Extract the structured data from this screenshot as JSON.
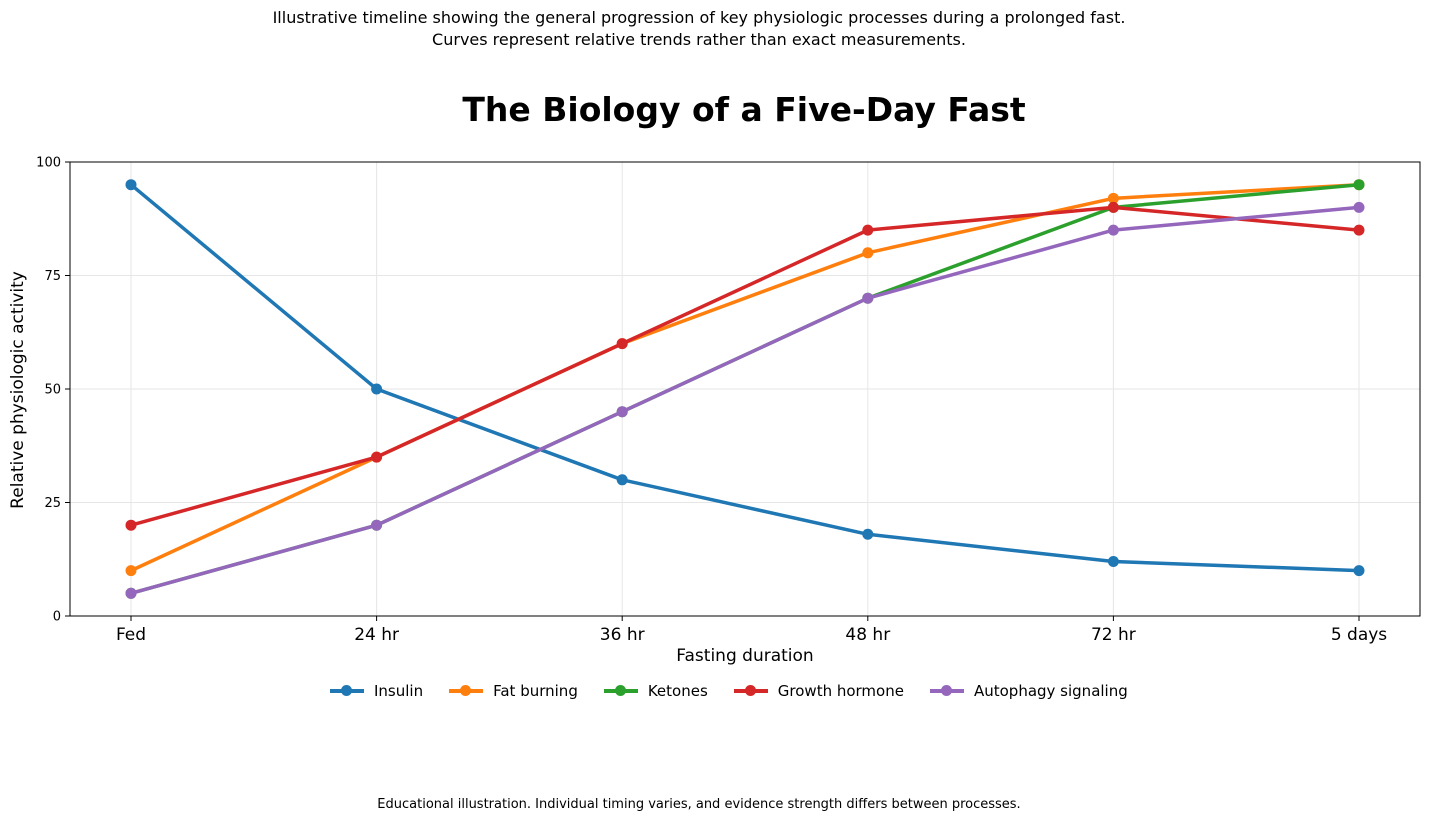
{
  "caption": {
    "line1": "Illustrative timeline showing the general progression of key physiologic processes during a prolonged fast.",
    "line2": "Curves represent relative trends rather than exact measurements."
  },
  "footnote": "Educational illustration. Individual timing varies, and evidence strength differs between processes.",
  "chart_data": {
    "type": "line",
    "title": "The Biology of a Five-Day Fast",
    "xlabel": "Fasting duration",
    "ylabel": "Relative physiologic activity",
    "categories": [
      "Fed",
      "24 hr",
      "36 hr",
      "48 hr",
      "72 hr",
      "5 days"
    ],
    "ylim": [
      0,
      100
    ],
    "yticks": [
      0,
      25,
      50,
      75,
      100
    ],
    "grid": true,
    "legend_position": "bottom-center",
    "series": [
      {
        "name": "Insulin",
        "color": "#1f77b4",
        "values": [
          95,
          50,
          30,
          18,
          12,
          10
        ]
      },
      {
        "name": "Fat burning",
        "color": "#ff7f0e",
        "values": [
          10,
          35,
          60,
          80,
          92,
          95
        ]
      },
      {
        "name": "Ketones",
        "color": "#2ca02c",
        "values": [
          5,
          20,
          45,
          70,
          90,
          95
        ]
      },
      {
        "name": "Growth hormone",
        "color": "#d62728",
        "values": [
          20,
          35,
          60,
          85,
          90,
          85
        ]
      },
      {
        "name": "Autophagy signaling",
        "color": "#9467bd",
        "values": [
          5,
          20,
          45,
          70,
          85,
          90
        ]
      }
    ]
  }
}
